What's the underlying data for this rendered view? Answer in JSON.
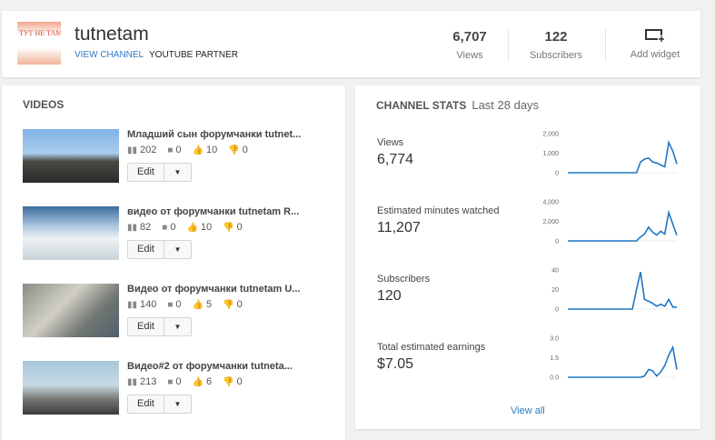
{
  "header": {
    "logo_text": "ТУТ НЕ ТАМ",
    "channel_name": "tutnetam",
    "view_channel": "VIEW CHANNEL",
    "partner": "YOUTUBE PARTNER",
    "views_value": "6,707",
    "views_label": "Views",
    "subs_value": "122",
    "subs_label": "Subscribers",
    "add_widget": "Add widget"
  },
  "videos": {
    "title": "VIDEOS",
    "items": [
      {
        "title": "Младший сын форумчанки tutnet...",
        "views": "202",
        "comments": "0",
        "likes": "10",
        "dislikes": "0",
        "edit": "Edit"
      },
      {
        "title": "видео от форумчанки tutnetam R...",
        "views": "82",
        "comments": "0",
        "likes": "10",
        "dislikes": "0",
        "edit": "Edit"
      },
      {
        "title": "Видео от форумчанки tutnetam U...",
        "views": "140",
        "comments": "0",
        "likes": "5",
        "dislikes": "0",
        "edit": "Edit"
      },
      {
        "title": "Видео#2 от форумчанки tutneta...",
        "views": "213",
        "comments": "0",
        "likes": "6",
        "dislikes": "0",
        "edit": "Edit"
      }
    ]
  },
  "stats": {
    "title": "CHANNEL STATS",
    "period": "Last 28 days",
    "view_all": "View all",
    "items": [
      {
        "label": "Views",
        "value": "6,774"
      },
      {
        "label": "Estimated minutes watched",
        "value": "11,207"
      },
      {
        "label": "Subscribers",
        "value": "120"
      },
      {
        "label": "Total estimated earnings",
        "value": "$7.05"
      }
    ]
  },
  "chart_data": [
    {
      "type": "line",
      "series_of": "Views",
      "yticks": [
        "0",
        "1,000",
        "2,000"
      ],
      "ylim": [
        0,
        2000
      ],
      "values": [
        0,
        0,
        0,
        0,
        0,
        0,
        0,
        0,
        0,
        0,
        0,
        0,
        0,
        0,
        0,
        0,
        0,
        0,
        550,
        700,
        750,
        550,
        500,
        400,
        300,
        1550,
        1100,
        450
      ]
    },
    {
      "type": "line",
      "series_of": "Estimated minutes watched",
      "yticks": [
        "0",
        "2,000",
        "4,000"
      ],
      "ylim": [
        0,
        4000
      ],
      "values": [
        0,
        0,
        0,
        0,
        0,
        0,
        0,
        0,
        0,
        0,
        0,
        0,
        0,
        0,
        0,
        0,
        0,
        0,
        400,
        700,
        1400,
        900,
        600,
        1000,
        700,
        2900,
        1700,
        600
      ]
    },
    {
      "type": "line",
      "series_of": "Subscribers",
      "yticks": [
        "0",
        "20",
        "40"
      ],
      "ylim": [
        0,
        40
      ],
      "values": [
        0,
        0,
        0,
        0,
        0,
        0,
        0,
        0,
        0,
        0,
        0,
        0,
        0,
        0,
        0,
        0,
        0,
        20,
        38,
        10,
        8,
        6,
        3,
        5,
        3,
        10,
        2,
        2
      ]
    },
    {
      "type": "line",
      "series_of": "Total estimated earnings",
      "yticks": [
        "0.0",
        "1.5",
        "3.0"
      ],
      "ylim": [
        0,
        3
      ],
      "values": [
        0,
        0,
        0,
        0,
        0,
        0,
        0,
        0,
        0,
        0,
        0,
        0,
        0,
        0,
        0,
        0,
        0,
        0,
        0,
        0.1,
        0.6,
        0.5,
        0.1,
        0.4,
        0.9,
        1.7,
        2.3,
        0.6
      ]
    }
  ],
  "colors": {
    "accent": "#2c7bc4",
    "line": "#1f77c4"
  }
}
